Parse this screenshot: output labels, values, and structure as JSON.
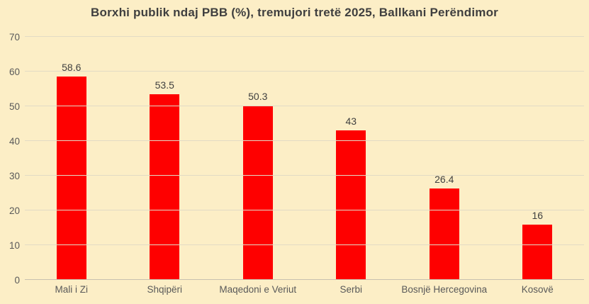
{
  "chart_data": {
    "type": "bar",
    "title": "Borxhi publik ndaj PBB (%), tremujori tretë 2025, Ballkani Perëndimor",
    "categories": [
      "Mali i Zi",
      "Shqipëri",
      "Maqedoni e Veriut",
      "Serbi",
      "Bosnjë Hercegovina",
      "Kosovë"
    ],
    "values": [
      58.6,
      53.5,
      50.3,
      43,
      26.4,
      16
    ],
    "data_labels": [
      "58.6",
      "53.5",
      "50.3",
      "43",
      "26.4",
      "16"
    ],
    "xlabel": "",
    "ylabel": "",
    "ylim": [
      0,
      70
    ],
    "yticks": [
      0,
      10,
      20,
      30,
      40,
      50,
      60,
      70
    ],
    "grid": true,
    "legend": false,
    "colors": {
      "background": "#FCEEC6",
      "bar": "#FE0000",
      "gridline": "#E2DBC5",
      "axis_line": "#C7C0AF",
      "tick_label": "#595959",
      "value_label": "#404040",
      "title": "#3F3F3F"
    }
  }
}
